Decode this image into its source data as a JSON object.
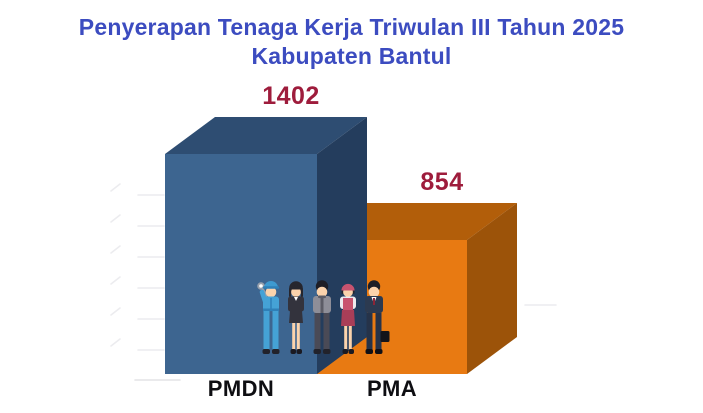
{
  "title": {
    "line1": "Penyerapan Tenaga Kerja Triwulan III Tahun 2025",
    "line2": "Kabupaten Bantul",
    "color": "#3C4CC0"
  },
  "chart_data": {
    "type": "bar",
    "style": "3d-boxes",
    "title": "Penyerapan Tenaga Kerja Triwulan III Tahun 2025 Kabupaten Bantul",
    "categories": [
      "PMDN",
      "PMA"
    ],
    "values": [
      1402,
      854
    ],
    "value_labels": [
      "1402",
      "854"
    ],
    "ylim": [
      0,
      1402
    ],
    "legend": false,
    "gridlines": "faint left axis ticks",
    "value_label_color": "#9E1C3C",
    "category_label_color": "#0E0E12",
    "series_colors": [
      {
        "name": "PMDN",
        "front": "#3D6590",
        "top": "#2E4D72",
        "side": "#243D5D"
      },
      {
        "name": "PMA",
        "front": "#E87A12",
        "top": "#B25E0A",
        "side": "#9C5309"
      }
    ],
    "background": "#FFFFFF"
  },
  "decor": {
    "people_illustration": "five workers clipart (mechanic, businesswoman, casual worker, vendor woman, businessman)"
  }
}
